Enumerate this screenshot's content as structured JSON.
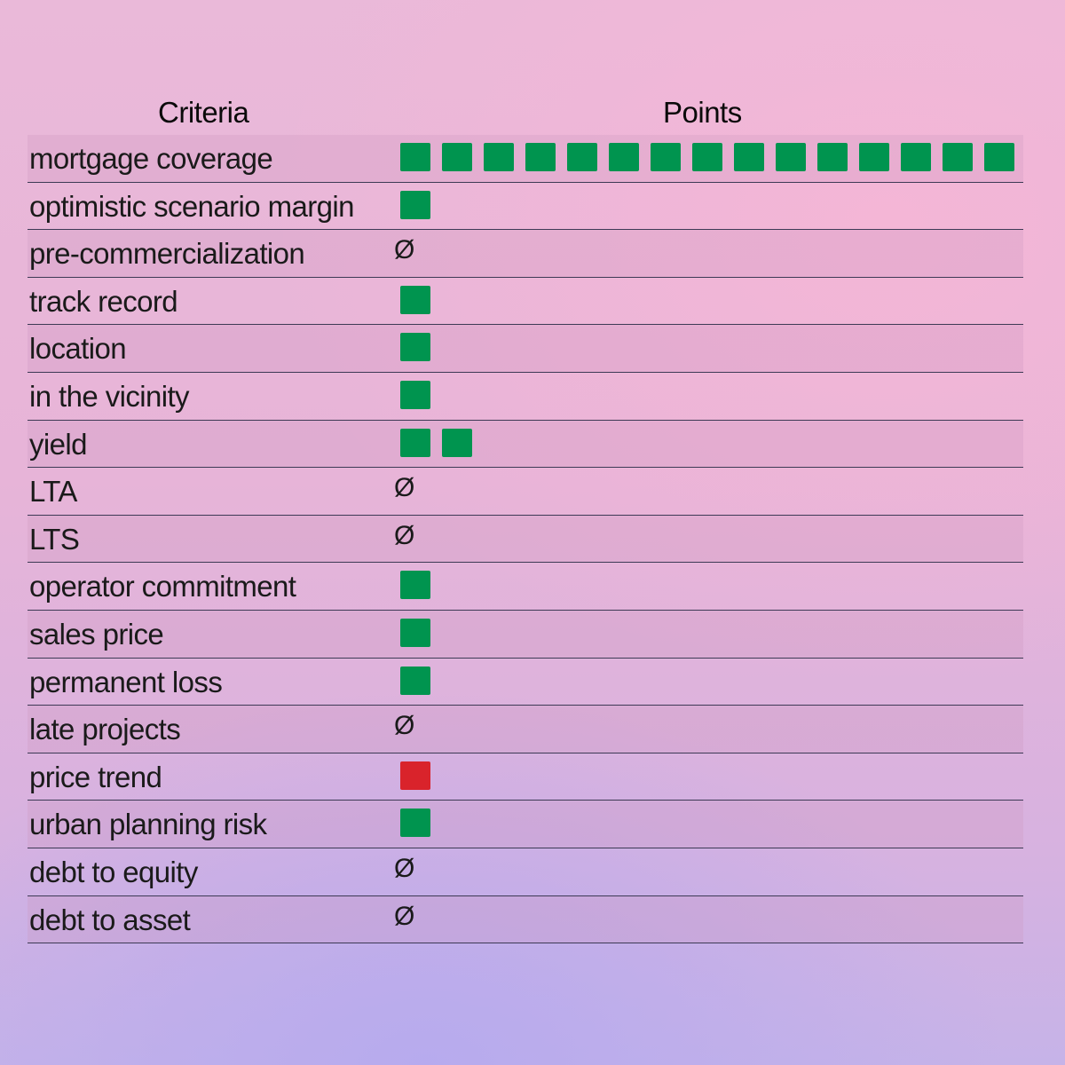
{
  "colors": {
    "positive": "#00944f",
    "negative": "#d9232b"
  },
  "headers": {
    "criteria": "Criteria",
    "points": "Points"
  },
  "empty_symbol": "Ø",
  "chart_data": {
    "type": "table",
    "columns": [
      "Criteria",
      "Points"
    ],
    "rows": [
      {
        "label": "mortgage coverage",
        "points": 15,
        "color": "positive"
      },
      {
        "label": "optimistic scenario margin",
        "points": 1,
        "color": "positive"
      },
      {
        "label": "pre-commercialization",
        "points": 0,
        "color": "none"
      },
      {
        "label": "track record",
        "points": 1,
        "color": "positive"
      },
      {
        "label": "location",
        "points": 1,
        "color": "positive"
      },
      {
        "label": "in the vicinity",
        "points": 1,
        "color": "positive"
      },
      {
        "label": "yield",
        "points": 2,
        "color": "positive"
      },
      {
        "label": "LTA",
        "points": 0,
        "color": "none"
      },
      {
        "label": "LTS",
        "points": 0,
        "color": "none"
      },
      {
        "label": "operator commitment",
        "points": 1,
        "color": "positive"
      },
      {
        "label": "sales price",
        "points": 1,
        "color": "positive"
      },
      {
        "label": "permanent loss",
        "points": 1,
        "color": "positive"
      },
      {
        "label": "late projects",
        "points": 0,
        "color": "none"
      },
      {
        "label": "price trend",
        "points": 1,
        "color": "negative"
      },
      {
        "label": "urban planning risk",
        "points": 1,
        "color": "positive"
      },
      {
        "label": "debt to equity",
        "points": 0,
        "color": "none"
      },
      {
        "label": "debt to asset",
        "points": 0,
        "color": "none"
      }
    ]
  }
}
